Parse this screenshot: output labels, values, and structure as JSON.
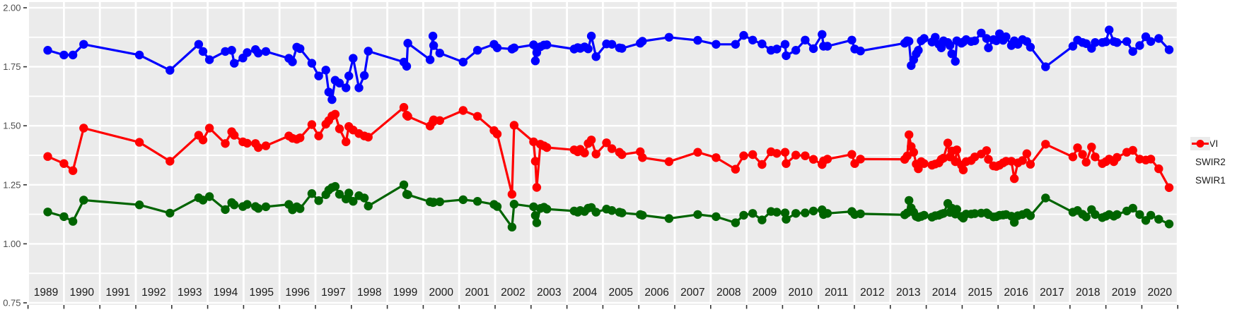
{
  "figure": {
    "background": "#FFFFFF",
    "panel_background": "#EBEBEB",
    "grid_color": "#FFFFFF",
    "tick_color": "#333333",
    "y_tick_text_color": "#4d4d4d",
    "x_tick_text_color": "#1a1a1a"
  },
  "y_axis": {
    "tick_labels": [
      "2.00",
      "1.75",
      "1.50",
      "1.25",
      "1.00",
      "0.75"
    ],
    "tick_values": [
      2.0,
      1.75,
      1.5,
      1.25,
      1.0,
      0.75
    ],
    "minor_step": 0.125,
    "range": [
      0.75,
      2.0
    ]
  },
  "x_axis": {
    "year_labels": [
      "1989",
      "1990",
      "1991",
      "1992",
      "1993",
      "1994",
      "1995",
      "1996",
      "1997",
      "1998",
      "1999",
      "2000",
      "2001",
      "2002",
      "2003",
      "2004",
      "2005",
      "2006",
      "2007",
      "2008",
      "2009",
      "2010",
      "2011",
      "2012",
      "2013",
      "2014",
      "2015",
      "2016",
      "2017",
      "2018",
      "2019",
      "2020"
    ],
    "range": [
      1989,
      2021
    ]
  },
  "legend": {
    "items": [
      {
        "label": "NDVI",
        "color": "#0000FF"
      },
      {
        "label": "SWIR2",
        "color": "#006400"
      },
      {
        "label": "SWIR1",
        "color": "#FF0000"
      }
    ]
  },
  "chart_data": {
    "type": "line",
    "title": "",
    "xlabel": "",
    "ylabel": "",
    "xlim": [
      1989,
      2021
    ],
    "ylim": [
      0.75,
      2.0
    ],
    "grid": true,
    "legend_position": "right",
    "x": [
      1989.55,
      1990.0,
      1990.25,
      1990.55,
      1992.1,
      1992.95,
      1993.75,
      1993.87,
      1994.05,
      1994.49,
      1994.67,
      1994.74,
      1994.98,
      1995.1,
      1995.33,
      1995.41,
      1995.62,
      1996.26,
      1996.36,
      1996.48,
      1996.57,
      1996.9,
      1997.09,
      1997.29,
      1997.37,
      1997.46,
      1997.55,
      1997.67,
      1997.85,
      1997.93,
      1998.05,
      1998.21,
      1998.36,
      1998.47,
      1999.46,
      1999.54,
      1999.57,
      2000.19,
      2000.27,
      2000.29,
      2000.46,
      2001.11,
      2001.51,
      2001.97,
      2002.06,
      2002.47,
      2002.53,
      2003.07,
      2003.12,
      2003.16,
      2003.26,
      2003.36,
      2003.44,
      2004.2,
      2004.3,
      2004.37,
      2004.49,
      2004.59,
      2004.68,
      2004.81,
      2005.1,
      2005.25,
      2005.46,
      2005.53,
      2006.04,
      2006.1,
      2006.84,
      2007.64,
      2008.15,
      2008.69,
      2008.92,
      2009.17,
      2009.43,
      2009.68,
      2009.84,
      2010.07,
      2010.1,
      2010.37,
      2010.63,
      2010.86,
      2011.1,
      2011.14,
      2011.25,
      2011.93,
      2012.01,
      2012.17,
      2013.4,
      2013.47,
      2013.52,
      2013.58,
      2013.65,
      2013.72,
      2013.78,
      2013.86,
      2013.94,
      2014.16,
      2014.25,
      2014.35,
      2014.42,
      2014.48,
      2014.6,
      2014.66,
      2014.71,
      2014.81,
      2014.85,
      2014.98,
      2015.03,
      2015.11,
      2015.25,
      2015.35,
      2015.53,
      2015.68,
      2015.73,
      2015.87,
      2015.95,
      2016.04,
      2016.14,
      2016.22,
      2016.37,
      2016.45,
      2016.55,
      2016.68,
      2016.8,
      2016.9,
      2017.32,
      2018.08,
      2018.21,
      2018.35,
      2018.45,
      2018.6,
      2018.7,
      2018.9,
      2019.0,
      2019.09,
      2019.22,
      2019.31,
      2019.58,
      2019.75,
      2019.94,
      2020.11,
      2020.25,
      2020.47,
      2020.76
    ],
    "series": [
      {
        "name": "NDVI",
        "color": "#0000FF",
        "values": [
          1.82,
          1.8,
          1.8,
          1.845,
          1.8,
          1.735,
          1.845,
          1.815,
          1.78,
          1.815,
          1.82,
          1.765,
          1.787,
          1.81,
          1.823,
          1.808,
          1.815,
          1.786,
          1.771,
          1.833,
          1.827,
          1.765,
          1.711,
          1.736,
          1.643,
          1.611,
          1.693,
          1.681,
          1.661,
          1.711,
          1.786,
          1.661,
          1.713,
          1.816,
          1.77,
          1.752,
          1.85,
          1.78,
          1.88,
          1.84,
          1.808,
          1.77,
          1.82,
          1.845,
          1.83,
          1.825,
          1.83,
          1.843,
          1.775,
          1.81,
          1.835,
          1.842,
          1.843,
          1.825,
          1.831,
          1.828,
          1.834,
          1.826,
          1.88,
          1.793,
          1.847,
          1.845,
          1.83,
          1.828,
          1.85,
          1.858,
          1.875,
          1.862,
          1.845,
          1.845,
          1.883,
          1.863,
          1.847,
          1.82,
          1.825,
          1.845,
          1.797,
          1.82,
          1.863,
          1.827,
          1.887,
          1.837,
          1.837,
          1.863,
          1.825,
          1.817,
          1.85,
          1.86,
          1.858,
          1.755,
          1.78,
          1.805,
          1.82,
          1.86,
          1.87,
          1.855,
          1.875,
          1.845,
          1.83,
          1.86,
          1.853,
          1.84,
          1.805,
          1.773,
          1.86,
          1.85,
          1.855,
          1.865,
          1.857,
          1.86,
          1.893,
          1.87,
          1.83,
          1.865,
          1.86,
          1.89,
          1.862,
          1.877,
          1.84,
          1.86,
          1.845,
          1.865,
          1.857,
          1.833,
          1.75,
          1.837,
          1.863,
          1.853,
          1.848,
          1.828,
          1.853,
          1.853,
          1.856,
          1.906,
          1.857,
          1.853,
          1.857,
          1.815,
          1.84,
          1.877,
          1.857,
          1.87,
          1.822
        ]
      },
      {
        "name": "SWIR2",
        "color": "#006400",
        "values": [
          1.135,
          1.115,
          1.095,
          1.185,
          1.165,
          1.13,
          1.195,
          1.185,
          1.2,
          1.145,
          1.175,
          1.165,
          1.158,
          1.167,
          1.158,
          1.15,
          1.157,
          1.167,
          1.144,
          1.157,
          1.149,
          1.213,
          1.183,
          1.208,
          1.228,
          1.238,
          1.243,
          1.21,
          1.19,
          1.215,
          1.18,
          1.204,
          1.194,
          1.16,
          1.25,
          1.21,
          1.208,
          1.178,
          1.175,
          1.176,
          1.178,
          1.187,
          1.18,
          1.167,
          1.158,
          1.071,
          1.168,
          1.157,
          1.12,
          1.089,
          1.15,
          1.155,
          1.147,
          1.139,
          1.134,
          1.141,
          1.137,
          1.151,
          1.154,
          1.134,
          1.147,
          1.141,
          1.134,
          1.131,
          1.124,
          1.121,
          1.107,
          1.124,
          1.115,
          1.089,
          1.121,
          1.129,
          1.101,
          1.137,
          1.134,
          1.131,
          1.104,
          1.129,
          1.131,
          1.139,
          1.144,
          1.124,
          1.129,
          1.137,
          1.124,
          1.127,
          1.123,
          1.131,
          1.184,
          1.152,
          1.134,
          1.116,
          1.112,
          1.116,
          1.121,
          1.113,
          1.119,
          1.121,
          1.126,
          1.129,
          1.171,
          1.133,
          1.151,
          1.126,
          1.146,
          1.116,
          1.109,
          1.126,
          1.126,
          1.128,
          1.13,
          1.131,
          1.124,
          1.114,
          1.115,
          1.121,
          1.122,
          1.124,
          1.117,
          1.091,
          1.119,
          1.124,
          1.131,
          1.119,
          1.194,
          1.134,
          1.141,
          1.125,
          1.114,
          1.145,
          1.124,
          1.111,
          1.117,
          1.124,
          1.117,
          1.124,
          1.139,
          1.151,
          1.124,
          1.099,
          1.121,
          1.104,
          1.084
        ]
      },
      {
        "name": "SWIR1",
        "color": "#FF0000",
        "values": [
          1.37,
          1.34,
          1.31,
          1.49,
          1.43,
          1.35,
          1.46,
          1.44,
          1.49,
          1.425,
          1.475,
          1.46,
          1.432,
          1.426,
          1.425,
          1.408,
          1.415,
          1.457,
          1.447,
          1.443,
          1.449,
          1.505,
          1.457,
          1.507,
          1.522,
          1.542,
          1.549,
          1.487,
          1.432,
          1.497,
          1.482,
          1.467,
          1.457,
          1.452,
          1.578,
          1.545,
          1.54,
          1.499,
          1.516,
          1.525,
          1.522,
          1.565,
          1.54,
          1.48,
          1.465,
          1.21,
          1.502,
          1.432,
          1.35,
          1.239,
          1.422,
          1.415,
          1.408,
          1.398,
          1.39,
          1.4,
          1.385,
          1.425,
          1.44,
          1.38,
          1.428,
          1.403,
          1.388,
          1.378,
          1.39,
          1.365,
          1.348,
          1.388,
          1.365,
          1.316,
          1.373,
          1.378,
          1.336,
          1.39,
          1.383,
          1.388,
          1.34,
          1.376,
          1.373,
          1.358,
          1.336,
          1.351,
          1.359,
          1.379,
          1.34,
          1.359,
          1.358,
          1.372,
          1.462,
          1.412,
          1.388,
          1.338,
          1.318,
          1.348,
          1.34,
          1.333,
          1.338,
          1.343,
          1.358,
          1.363,
          1.427,
          1.368,
          1.393,
          1.348,
          1.398,
          1.333,
          1.313,
          1.348,
          1.353,
          1.368,
          1.38,
          1.395,
          1.358,
          1.33,
          1.328,
          1.333,
          1.343,
          1.35,
          1.35,
          1.276,
          1.343,
          1.353,
          1.382,
          1.337,
          1.422,
          1.368,
          1.407,
          1.379,
          1.346,
          1.41,
          1.368,
          1.34,
          1.348,
          1.359,
          1.348,
          1.366,
          1.388,
          1.396,
          1.359,
          1.355,
          1.359,
          1.318,
          1.238
        ]
      }
    ]
  }
}
